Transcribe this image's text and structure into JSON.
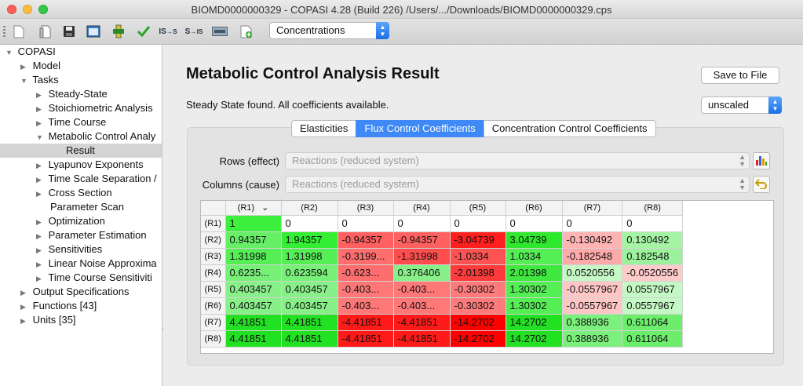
{
  "window": {
    "title": "BIOMD0000000329 - COPASI 4.28 (Build 226) /Users/.../Downloads/BIOMD0000000329.cps"
  },
  "toolbar": {
    "view_select": "Concentrations"
  },
  "tree": {
    "root": "COPASI",
    "model": "Model",
    "tasks": "Tasks",
    "steady_state": "Steady-State",
    "stoichiometric": "Stoichiometric Analysis",
    "time_course": "Time Course",
    "mca": "Metabolic Control Analy",
    "result": "Result",
    "lyapunov": "Lyapunov Exponents",
    "tss": "Time Scale Separation /",
    "cross_section": "Cross Section",
    "param_scan": "Parameter Scan",
    "optimization": "Optimization",
    "param_est": "Parameter Estimation",
    "sensitivities": "Sensitivities",
    "lna": "Linear Noise Approxima",
    "tc_sens": "Time Course Sensitiviti",
    "output_spec": "Output Specifications",
    "functions": "Functions [43]",
    "units": "Units [35]"
  },
  "main": {
    "title": "Metabolic Control Analysis Result",
    "save_button": "Save to File",
    "status": "Steady State found. All coefficients available.",
    "scaling": "unscaled",
    "tabs": [
      "Elasticities",
      "Flux Control Coefficients",
      "Concentration Control Coefficients"
    ],
    "rows_label": "Rows (effect)",
    "rows_value": "Reactions (reduced system)",
    "cols_label": "Columns (cause)",
    "cols_value": "Reactions (reduced system)"
  },
  "colors": {
    "accent": "#3e89f6",
    "positive_strong": "#3fe03f",
    "negative_strong": "#ff2020"
  },
  "table": {
    "columns": [
      "(R1)",
      "(R2)",
      "(R3)",
      "(R4)",
      "(R5)",
      "(R6)",
      "(R7)",
      "(R8)"
    ],
    "rows": [
      {
        "label": "(R1)",
        "cells": [
          {
            "v": "1",
            "bg": "#3ef03e"
          },
          {
            "v": "0",
            "bg": "#ffffff"
          },
          {
            "v": "0",
            "bg": "#ffffff"
          },
          {
            "v": "0",
            "bg": "#ffffff"
          },
          {
            "v": "0",
            "bg": "#ffffff"
          },
          {
            "v": "0",
            "bg": "#ffffff"
          },
          {
            "v": "0",
            "bg": "#ffffff"
          },
          {
            "v": "0",
            "bg": "#ffffff"
          }
        ]
      },
      {
        "label": "(R2)",
        "cells": [
          {
            "v": "0.94357",
            "bg": "#66ee66"
          },
          {
            "v": "1.94357",
            "bg": "#33ee33"
          },
          {
            "v": "-0.94357",
            "bg": "#ff6060"
          },
          {
            "v": "-0.94357",
            "bg": "#ff6060"
          },
          {
            "v": "-3.04739",
            "bg": "#ff1f1f"
          },
          {
            "v": "3.04739",
            "bg": "#2ee82e"
          },
          {
            "v": "-0.130492",
            "bg": "#ffb4b4"
          },
          {
            "v": "0.130492",
            "bg": "#a4f4a4"
          }
        ]
      },
      {
        "label": "(R3)",
        "cells": [
          {
            "v": "1.31998",
            "bg": "#55ee55"
          },
          {
            "v": "1.31998",
            "bg": "#55ee55"
          },
          {
            "v": "-0.3199...",
            "bg": "#ff6e6e"
          },
          {
            "v": "-1.31998",
            "bg": "#ff4c4c"
          },
          {
            "v": "-1.0334",
            "bg": "#ff5252"
          },
          {
            "v": "1.0334",
            "bg": "#55ee55"
          },
          {
            "v": "-0.182548",
            "bg": "#ffaaaa"
          },
          {
            "v": "0.182548",
            "bg": "#9cf29c"
          }
        ]
      },
      {
        "label": "(R4)",
        "cells": [
          {
            "v": "0.6235...",
            "bg": "#77f077"
          },
          {
            "v": "0.623594",
            "bg": "#77f077"
          },
          {
            "v": "-0.623...",
            "bg": "#ff6e6e"
          },
          {
            "v": "0.376406",
            "bg": "#88f088"
          },
          {
            "v": "-2.01398",
            "bg": "#ff3a3a"
          },
          {
            "v": "2.01398",
            "bg": "#3fe83f"
          },
          {
            "v": "0.0520556",
            "bg": "#c6f8c6"
          },
          {
            "v": "-0.0520556",
            "bg": "#ffcaca"
          }
        ]
      },
      {
        "label": "(R5)",
        "cells": [
          {
            "v": "0.403457",
            "bg": "#88f088"
          },
          {
            "v": "0.403457",
            "bg": "#88f088"
          },
          {
            "v": "-0.403...",
            "bg": "#ff7878"
          },
          {
            "v": "-0.403...",
            "bg": "#ff7878"
          },
          {
            "v": "-0.30302",
            "bg": "#ff7a7a"
          },
          {
            "v": "1.30302",
            "bg": "#55ee55"
          },
          {
            "v": "-0.0557967",
            "bg": "#ffc6c6"
          },
          {
            "v": "0.0557967",
            "bg": "#c4f8c4"
          }
        ]
      },
      {
        "label": "(R6)",
        "cells": [
          {
            "v": "0.403457",
            "bg": "#88f088"
          },
          {
            "v": "0.403457",
            "bg": "#88f088"
          },
          {
            "v": "-0.403...",
            "bg": "#ff7878"
          },
          {
            "v": "-0.403...",
            "bg": "#ff7878"
          },
          {
            "v": "-0.30302",
            "bg": "#ff7a7a"
          },
          {
            "v": "1.30302",
            "bg": "#55ee55"
          },
          {
            "v": "-0.0557967",
            "bg": "#ffc6c6"
          },
          {
            "v": "0.0557967",
            "bg": "#c4f8c4"
          }
        ]
      },
      {
        "label": "(R7)",
        "cells": [
          {
            "v": "4.41851",
            "bg": "#22e022"
          },
          {
            "v": "4.41851",
            "bg": "#22e022"
          },
          {
            "v": "-4.41851",
            "bg": "#ff1a1a"
          },
          {
            "v": "-4.41851",
            "bg": "#ff1a1a"
          },
          {
            "v": "-14.2702",
            "bg": "#ff0000"
          },
          {
            "v": "14.2702",
            "bg": "#22e022"
          },
          {
            "v": "0.388936",
            "bg": "#7cf07c"
          },
          {
            "v": "0.611064",
            "bg": "#6cee6c"
          }
        ]
      },
      {
        "label": "(R8)",
        "cells": [
          {
            "v": "4.41851",
            "bg": "#22e022"
          },
          {
            "v": "4.41851",
            "bg": "#22e022"
          },
          {
            "v": "-4.41851",
            "bg": "#ff1a1a"
          },
          {
            "v": "-4.41851",
            "bg": "#ff1a1a"
          },
          {
            "v": "-14.2702",
            "bg": "#ff0000"
          },
          {
            "v": "14.2702",
            "bg": "#22e022"
          },
          {
            "v": "0.388936",
            "bg": "#7cf07c"
          },
          {
            "v": "0.611064",
            "bg": "#6cee6c"
          }
        ]
      }
    ]
  }
}
